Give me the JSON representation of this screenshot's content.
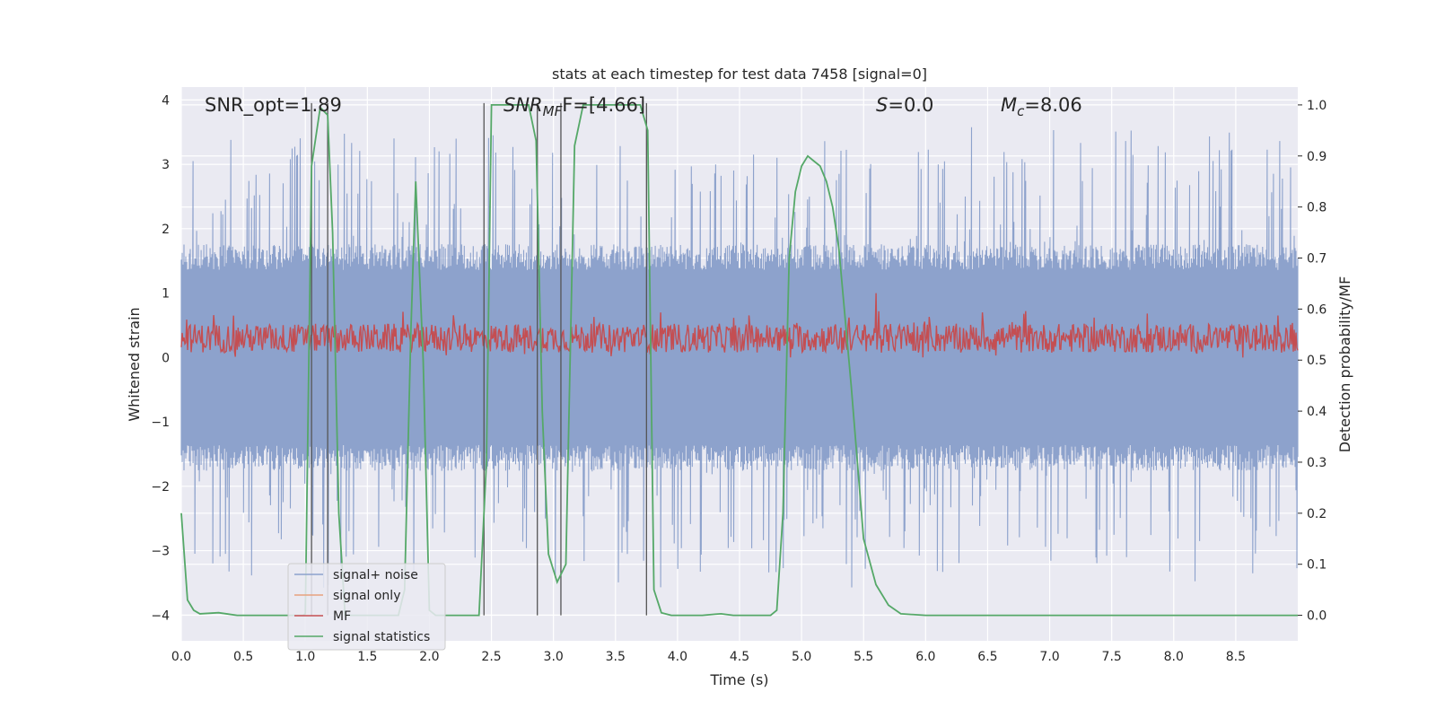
{
  "chart_data": {
    "type": "line",
    "title": "stats at each timestep for test data 7458 [signal=0]",
    "xlabel": "Time (s)",
    "ylabel_left": "Whitened strain",
    "ylabel_right": "Detection probability/MF",
    "xlim": [
      0.0,
      9.0
    ],
    "ylim_left": [
      -4.4,
      4.2
    ],
    "ylim_right": [
      -0.05,
      1.035
    ],
    "xticks": [
      "0.0",
      "0.5",
      "1.0",
      "1.5",
      "2.0",
      "2.5",
      "3.0",
      "3.5",
      "4.0",
      "4.5",
      "5.0",
      "5.5",
      "6.0",
      "6.5",
      "7.0",
      "7.5",
      "8.0",
      "8.5"
    ],
    "yticks_left": [
      "4",
      "3",
      "2",
      "1",
      "0",
      "−1",
      "−2",
      "−3",
      "−4"
    ],
    "yticks_right": [
      "1.0",
      "0.9",
      "0.8",
      "0.7",
      "0.6",
      "0.5",
      "0.4",
      "0.3",
      "0.2",
      "0.1",
      "0.0"
    ],
    "grid": true,
    "legend_position": "lower-left",
    "annotations": {
      "snr_opt": "SNR_opt=1.89",
      "snr_mf_main": "SNR",
      "snr_mf_sub": "MF",
      "snr_mf_rest": "F=[4.66]",
      "s_main": "S",
      "s_rest": "=0.0",
      "mc_main": "M",
      "mc_sub": "c",
      "mc_rest": "=8.06"
    },
    "vertical_markers": [
      1.05,
      1.18,
      2.44,
      2.87,
      3.06,
      3.75
    ],
    "series": [
      {
        "name": "signal+ noise",
        "color": "#8da2cc",
        "noise_center": 0.0,
        "noise_typical": 1.6,
        "noise_peak": 3.5
      },
      {
        "name": "signal only",
        "color": "#e8a27e",
        "values": []
      },
      {
        "name": "MF",
        "color": "#c44e52",
        "noise_center": 0.3,
        "noise_range": [
          0.0,
          0.72
        ],
        "noise_peak": 1.0
      },
      {
        "name": "signal statistics",
        "color": "#55a868",
        "x": [
          0.0,
          0.05,
          0.1,
          0.15,
          0.3,
          0.45,
          0.6,
          0.9,
          0.98,
          1.0,
          1.05,
          1.12,
          1.18,
          1.22,
          1.27,
          1.32,
          1.5,
          1.75,
          1.8,
          1.85,
          1.89,
          1.95,
          2.0,
          2.05,
          2.3,
          2.4,
          2.46,
          2.5,
          2.55,
          2.7,
          2.8,
          2.86,
          2.91,
          2.96,
          3.03,
          3.1,
          3.17,
          3.24,
          3.3,
          3.5,
          3.7,
          3.76,
          3.81,
          3.87,
          3.95,
          4.1,
          4.2,
          4.3,
          4.35,
          4.45,
          4.6,
          4.75,
          4.8,
          4.85,
          4.9,
          4.95,
          5.0,
          5.05,
          5.1,
          5.15,
          5.2,
          5.25,
          5.3,
          5.4,
          5.5,
          5.6,
          5.7,
          5.8,
          6.0,
          7.0,
          8.0,
          9.0
        ],
        "values": [
          0.2,
          0.03,
          0.01,
          0.003,
          0.005,
          0.0,
          0.0,
          0.0,
          0.0,
          0.003,
          0.88,
          0.995,
          0.98,
          0.75,
          0.2,
          0.0,
          0.0,
          0.0,
          0.05,
          0.55,
          0.85,
          0.5,
          0.01,
          0.0,
          0.0,
          0.0,
          0.3,
          1.0,
          1.0,
          1.0,
          1.0,
          0.93,
          0.4,
          0.12,
          0.065,
          0.1,
          0.92,
          1.0,
          1.0,
          1.0,
          1.0,
          0.95,
          0.05,
          0.005,
          0.0,
          0.0,
          0.0,
          0.002,
          0.003,
          0.0,
          0.0,
          0.0,
          0.01,
          0.2,
          0.7,
          0.83,
          0.88,
          0.9,
          0.89,
          0.88,
          0.85,
          0.8,
          0.72,
          0.45,
          0.15,
          0.06,
          0.02,
          0.003,
          0.0,
          0.0,
          0.0,
          0.0
        ]
      }
    ]
  }
}
